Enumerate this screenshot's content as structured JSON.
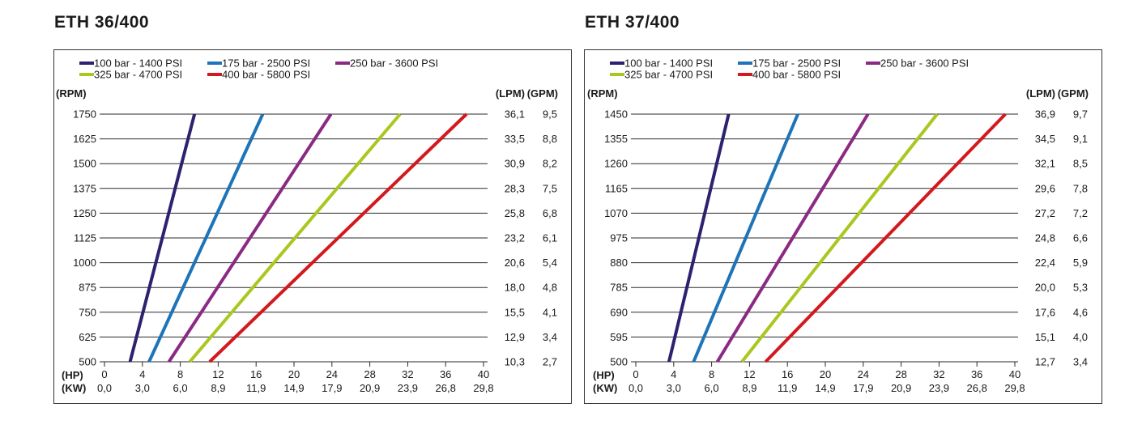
{
  "chart_data": [
    {
      "type": "line",
      "title": "ETH 36/400",
      "y_unit_label": "(RPM)",
      "y_ticks": [
        500,
        625,
        750,
        875,
        1000,
        1125,
        1250,
        1375,
        1500,
        1625,
        1750
      ],
      "ylim": [
        500,
        1750
      ],
      "flow_lpm_label": "(LPM)",
      "flow_gpm_label": "(GPM)",
      "flow_lpm": [
        "10,3",
        "12,9",
        "15,5",
        "18,0",
        "20,6",
        "23,2",
        "25,8",
        "28,3",
        "30,9",
        "33,5",
        "36,1"
      ],
      "flow_gpm": [
        "2,7",
        "3,4",
        "4,1",
        "4,8",
        "5,4",
        "6,1",
        "6,8",
        "7,5",
        "8,2",
        "8,8",
        "9,5"
      ],
      "x_hp_label": "(HP)",
      "x_kw_label": "(KW)",
      "x_hp_ticks": [
        "0",
        "4",
        "8",
        "12",
        "16",
        "20",
        "24",
        "28",
        "32",
        "36",
        "40"
      ],
      "x_kw_ticks": [
        "0,0",
        "3,0",
        "6,0",
        "8,9",
        "11,9",
        "14,9",
        "17,9",
        "20,9",
        "23,9",
        "26,8",
        "29,8"
      ],
      "xlim": [
        0,
        40
      ],
      "grid": "horizontal",
      "legend_position": "top",
      "series": [
        {
          "name": "100 bar - 1400 PSI",
          "color": "#2b2270",
          "points": [
            [
              2.7,
              500
            ],
            [
              9.5,
              1750
            ]
          ]
        },
        {
          "name": "175 bar - 2500 PSI",
          "color": "#1d74b8",
          "points": [
            [
              4.7,
              500
            ],
            [
              16.7,
              1750
            ]
          ]
        },
        {
          "name": "250 bar - 3600 PSI",
          "color": "#8a2a83",
          "points": [
            [
              6.8,
              500
            ],
            [
              23.9,
              1750
            ]
          ]
        },
        {
          "name": "325 bar - 4700 PSI",
          "color": "#a8c820",
          "points": [
            [
              9.0,
              500
            ],
            [
              31.2,
              1750
            ]
          ]
        },
        {
          "name": "400 bar - 5800 PSI",
          "color": "#d3191e",
          "points": [
            [
              11.1,
              500
            ],
            [
              38.2,
              1750
            ]
          ]
        }
      ]
    },
    {
      "type": "line",
      "title": "ETH 37/400",
      "y_unit_label": "(RPM)",
      "y_ticks": [
        500,
        595,
        690,
        785,
        880,
        975,
        1070,
        1165,
        1260,
        1355,
        1450
      ],
      "ylim": [
        500,
        1450
      ],
      "flow_lpm_label": "(LPM)",
      "flow_gpm_label": "(GPM)",
      "flow_lpm": [
        "12,7",
        "15,1",
        "17,6",
        "20,0",
        "22,4",
        "24,8",
        "27,2",
        "29,6",
        "32,1",
        "34,5",
        "36,9"
      ],
      "flow_gpm": [
        "3,4",
        "4,0",
        "4,6",
        "5,3",
        "5,9",
        "6,6",
        "7,2",
        "7,8",
        "8,5",
        "9,1",
        "9,7"
      ],
      "x_hp_label": "(HP)",
      "x_kw_label": "(KW)",
      "x_hp_ticks": [
        "0",
        "4",
        "8",
        "12",
        "16",
        "20",
        "24",
        "28",
        "32",
        "36",
        "40"
      ],
      "x_kw_ticks": [
        "0,0",
        "3,0",
        "6,0",
        "8,9",
        "11,9",
        "14,9",
        "17,9",
        "20,9",
        "23,9",
        "26,8",
        "29,8"
      ],
      "xlim": [
        0,
        40
      ],
      "grid": "horizontal",
      "legend_position": "top",
      "series": [
        {
          "name": "100 bar - 1400 PSI",
          "color": "#2b2270",
          "points": [
            [
              3.5,
              500
            ],
            [
              9.8,
              1450
            ]
          ]
        },
        {
          "name": "175 bar - 2500 PSI",
          "color": "#1d74b8",
          "points": [
            [
              6.1,
              500
            ],
            [
              17.1,
              1450
            ]
          ]
        },
        {
          "name": "250 bar - 3600 PSI",
          "color": "#8a2a83",
          "points": [
            [
              8.6,
              500
            ],
            [
              24.5,
              1450
            ]
          ]
        },
        {
          "name": "325 bar - 4700 PSI",
          "color": "#a8c820",
          "points": [
            [
              11.2,
              500
            ],
            [
              31.8,
              1450
            ]
          ]
        },
        {
          "name": "400 bar - 5800 PSI",
          "color": "#d3191e",
          "points": [
            [
              13.7,
              500
            ],
            [
              39.0,
              1450
            ]
          ]
        }
      ]
    }
  ]
}
